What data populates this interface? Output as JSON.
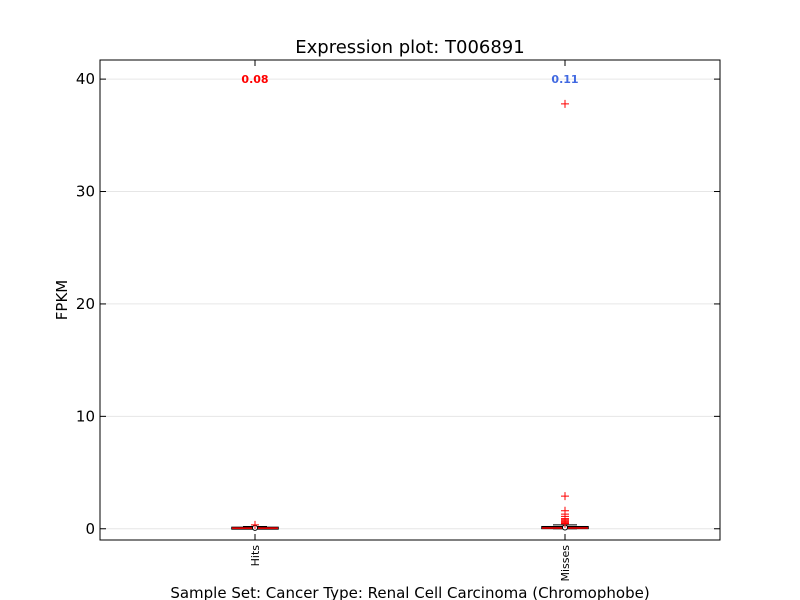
{
  "chart_data": {
    "type": "box",
    "title": "Expression plot: T006891",
    "xlabel": "Sample Set: Cancer Type: Renal Cell Carcinoma (Chromophobe)",
    "ylabel": "FPKM",
    "ylim": [
      -1,
      41.7
    ],
    "yticks": [
      0,
      10,
      20,
      30,
      40
    ],
    "grid": true,
    "categories": [
      "Hits",
      "Misses"
    ],
    "boxes": [
      {
        "name": "Hits",
        "q1": 0.02,
        "median": 0.06,
        "q3": 0.12,
        "whisker_low": 0.0,
        "whisker_high": 0.2,
        "mean": 0.08,
        "mean_label": "0.08",
        "mean_label_color": "#ff0000",
        "outliers": [
          0.35
        ]
      },
      {
        "name": "Misses",
        "q1": 0.03,
        "median": 0.07,
        "q3": 0.18,
        "whisker_low": 0.0,
        "whisker_high": 0.35,
        "mean": 0.11,
        "mean_label": "0.11",
        "mean_label_color": "#4169e1",
        "outliers": [
          37.8,
          2.9,
          1.6,
          1.3,
          1.1,
          0.9,
          0.8,
          0.7,
          0.6,
          0.5,
          0.45
        ]
      }
    ],
    "colors": {
      "outlier": "#ff0000",
      "median": "#ff0000",
      "box": "#000000",
      "mean_marker": "#ffffff"
    }
  }
}
